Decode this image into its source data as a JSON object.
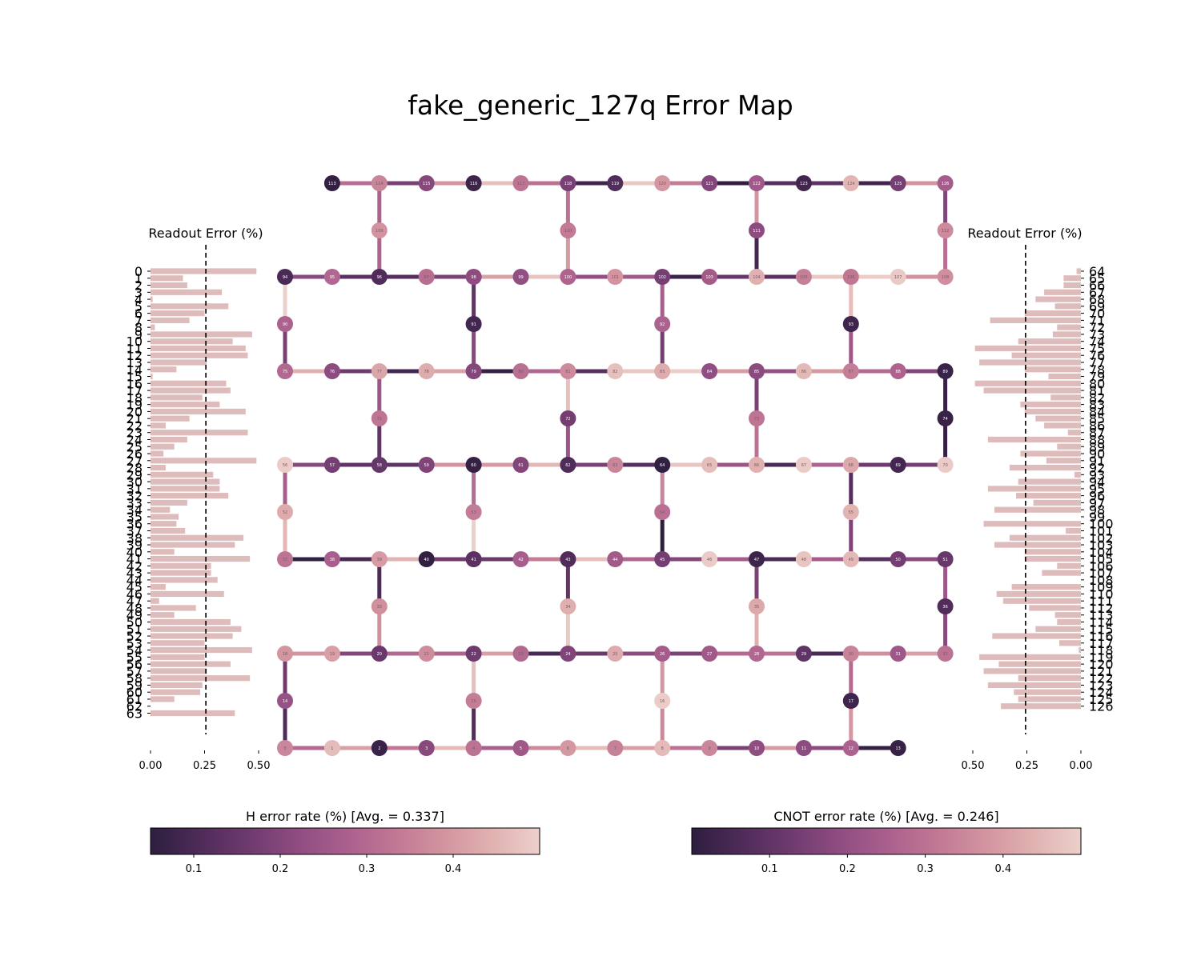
{
  "title": "fake_generic_127q Error Map",
  "colors": {
    "bar": "#dfbcbc",
    "cmap": [
      "#2d1e3e",
      "#4e2b59",
      "#6d3a6e",
      "#8e4c80",
      "#a95f8d",
      "#c07794",
      "#d2939f",
      "#e0b1b0",
      "#ecd0cb"
    ],
    "avg_line": "#000000"
  },
  "chart_data": [
    {
      "type": "table",
      "kind": "qubit-coupling-map",
      "qubits": [
        0,
        1,
        2,
        3,
        4,
        5,
        6,
        7,
        8,
        9,
        10,
        11,
        12,
        13,
        14,
        15,
        16,
        17,
        18,
        19,
        20,
        21,
        22,
        23,
        24,
        25,
        26,
        27,
        28,
        29,
        30,
        31,
        32,
        33,
        34,
        35,
        36,
        37,
        38,
        39,
        40,
        41,
        42,
        43,
        44,
        45,
        46,
        47,
        48,
        49,
        50,
        51,
        52,
        53,
        54,
        55,
        56,
        57,
        58,
        59,
        60,
        61,
        62,
        63,
        64,
        65,
        66,
        67,
        68,
        69,
        70,
        71,
        72,
        73,
        74,
        75,
        76,
        77,
        78,
        79,
        80,
        81,
        82,
        83,
        84,
        85,
        86,
        87,
        88,
        89,
        90,
        91,
        92,
        93,
        94,
        95,
        96,
        97,
        98,
        99,
        100,
        101,
        102,
        103,
        104,
        105,
        106,
        107,
        108,
        109,
        110,
        111,
        112,
        113,
        114,
        115,
        116,
        117,
        118,
        119,
        120,
        121,
        122,
        123,
        124,
        125,
        126
      ]
    },
    {
      "type": "bar",
      "title": "Readout Error (%)",
      "side": "left",
      "categories": [
        "0",
        "1",
        "2",
        "3",
        "4",
        "5",
        "6",
        "7",
        "8",
        "9",
        "10",
        "11",
        "12",
        "13",
        "14",
        "15",
        "16",
        "17",
        "18",
        "19",
        "20",
        "21",
        "22",
        "23",
        "24",
        "25",
        "26",
        "27",
        "28",
        "29",
        "30",
        "31",
        "32",
        "33",
        "34",
        "35",
        "36",
        "37",
        "38",
        "39",
        "40",
        "41",
        "42",
        "43",
        "44",
        "45",
        "46",
        "47",
        "48",
        "49",
        "50",
        "51",
        "52",
        "53",
        "54",
        "55",
        "56",
        "57",
        "58",
        "59",
        "60",
        "61",
        "62",
        "63"
      ],
      "values": [
        0.49,
        0.15,
        0.17,
        0.33,
        0.01,
        0.36,
        0.25,
        0.18,
        0.02,
        0.47,
        0.38,
        0.44,
        0.45,
        0.26,
        0.12,
        0.01,
        0.35,
        0.37,
        0.24,
        0.32,
        0.44,
        0.18,
        0.07,
        0.45,
        0.17,
        0.11,
        0.06,
        0.49,
        0.07,
        0.29,
        0.32,
        0.32,
        0.36,
        0.17,
        0.09,
        0.13,
        0.12,
        0.16,
        0.43,
        0.39,
        0.11,
        0.46,
        0.28,
        0.28,
        0.31,
        0.07,
        0.34,
        0.04,
        0.21,
        0.11,
        0.37,
        0.42,
        0.38,
        0.25,
        0.47,
        0.25,
        0.37,
        0.26,
        0.46,
        0.24,
        0.23,
        0.11,
        0.0,
        0.39
      ],
      "avg": 0.256,
      "xticks": [
        "0.00",
        "0.25",
        "0.50"
      ],
      "xlim": [
        0,
        0.5
      ]
    },
    {
      "type": "bar",
      "title": "Readout Error (%)",
      "side": "right",
      "categories": [
        "64",
        "65",
        "66",
        "67",
        "68",
        "69",
        "70",
        "71",
        "72",
        "73",
        "74",
        "75",
        "76",
        "77",
        "78",
        "79",
        "80",
        "81",
        "82",
        "83",
        "84",
        "85",
        "86",
        "87",
        "88",
        "89",
        "90",
        "91",
        "92",
        "93",
        "94",
        "95",
        "96",
        "97",
        "98",
        "99",
        "100",
        "101",
        "102",
        "103",
        "104",
        "105",
        "106",
        "107",
        "108",
        "109",
        "110",
        "111",
        "112",
        "113",
        "114",
        "115",
        "116",
        "117",
        "118",
        "119",
        "120",
        "121",
        "122",
        "123",
        "124",
        "125",
        "126"
      ],
      "values": [
        0.02,
        0.08,
        0.08,
        0.17,
        0.21,
        0.12,
        0.26,
        0.42,
        0.11,
        0.13,
        0.29,
        0.49,
        0.32,
        0.47,
        0.26,
        0.15,
        0.49,
        0.45,
        0.14,
        0.28,
        0.26,
        0.21,
        0.17,
        0.06,
        0.43,
        0.11,
        0.28,
        0.16,
        0.33,
        0.03,
        0.29,
        0.43,
        0.3,
        0.22,
        0.4,
        0.0,
        0.45,
        0.07,
        0.33,
        0.4,
        0.26,
        0.26,
        0.11,
        0.18,
        0.0,
        0.32,
        0.39,
        0.36,
        0.24,
        0.12,
        0.11,
        0.21,
        0.41,
        0.1,
        0.01,
        0.47,
        0.38,
        0.45,
        0.29,
        0.43,
        0.31,
        0.29,
        0.37
      ],
      "avg": 0.256,
      "xticks": [
        "0.50",
        "0.25",
        "0.00"
      ],
      "xlim": [
        0,
        0.5
      ]
    },
    {
      "type": "heatmap",
      "title": "H error rate (%) [Avg. = 0.337]",
      "range": [
        0.05,
        0.5
      ],
      "ticks": [
        "0.1",
        "0.2",
        "0.3",
        "0.4"
      ]
    },
    {
      "type": "heatmap",
      "title": "CNOT error rate (%) [Avg. = 0.246]",
      "range": [
        0.0,
        0.5
      ],
      "ticks": [
        "0.1",
        "0.2",
        "0.3",
        "0.4"
      ]
    }
  ]
}
